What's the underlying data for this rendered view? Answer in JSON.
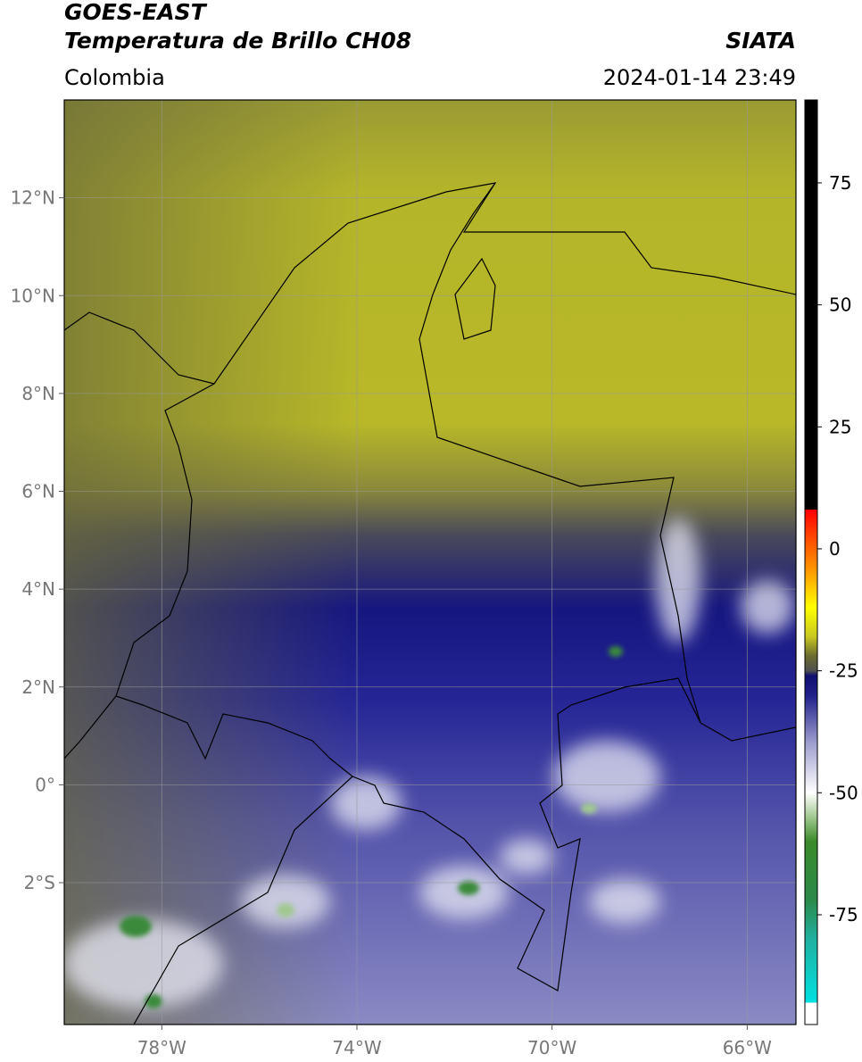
{
  "header": {
    "title": "GOES-EAST",
    "subtitle": "Temperatura de Brillo CH08",
    "region": "Colombia",
    "source": "SIATA",
    "timestamp": "2024-01-14 23:49"
  },
  "map": {
    "lon_range": [
      -80,
      -65
    ],
    "lat_range": [
      -4.9,
      14
    ],
    "lon_ticks": [
      {
        "value": -78,
        "label": "78°W"
      },
      {
        "value": -74,
        "label": "74°W"
      },
      {
        "value": -70,
        "label": "70°W"
      },
      {
        "value": -66,
        "label": "66°W"
      }
    ],
    "lat_ticks": [
      {
        "value": 12,
        "label": "12°N"
      },
      {
        "value": 10,
        "label": "10°N"
      },
      {
        "value": 8,
        "label": "8°N"
      },
      {
        "value": 6,
        "label": "6°N"
      },
      {
        "value": 4,
        "label": "4°N"
      },
      {
        "value": 2,
        "label": "2°N"
      },
      {
        "value": 0,
        "label": "0°"
      },
      {
        "value": -2,
        "label": "2°S"
      }
    ],
    "grid": true
  },
  "colorbar": {
    "range": [
      -97.5,
      92
    ],
    "ticks": [
      75,
      50,
      25,
      0,
      -25,
      -50,
      -75
    ],
    "stops": [
      {
        "value": 92,
        "color": "#000000"
      },
      {
        "value": 8,
        "color": "#000000"
      },
      {
        "value": 8,
        "color": "#ff0000"
      },
      {
        "value": 3,
        "color": "#ff4000"
      },
      {
        "value": -5,
        "color": "#ffa000"
      },
      {
        "value": -12,
        "color": "#ffff00"
      },
      {
        "value": -18,
        "color": "#c8c820"
      },
      {
        "value": -22,
        "color": "#6a6a30"
      },
      {
        "value": -25,
        "color": "#505050"
      },
      {
        "value": -26,
        "color": "#101070"
      },
      {
        "value": -30,
        "color": "#20208a"
      },
      {
        "value": -40,
        "color": "#a0a0d0"
      },
      {
        "value": -50,
        "color": "#ffffff"
      },
      {
        "value": -55,
        "color": "#a0c890"
      },
      {
        "value": -60,
        "color": "#3a8a2a"
      },
      {
        "value": -72,
        "color": "#2a8a4a"
      },
      {
        "value": -80,
        "color": "#20b0a0"
      },
      {
        "value": -93,
        "color": "#00e0e0"
      },
      {
        "value": -93,
        "color": "#ffffff"
      },
      {
        "value": -97.5,
        "color": "#ffffff"
      }
    ]
  }
}
